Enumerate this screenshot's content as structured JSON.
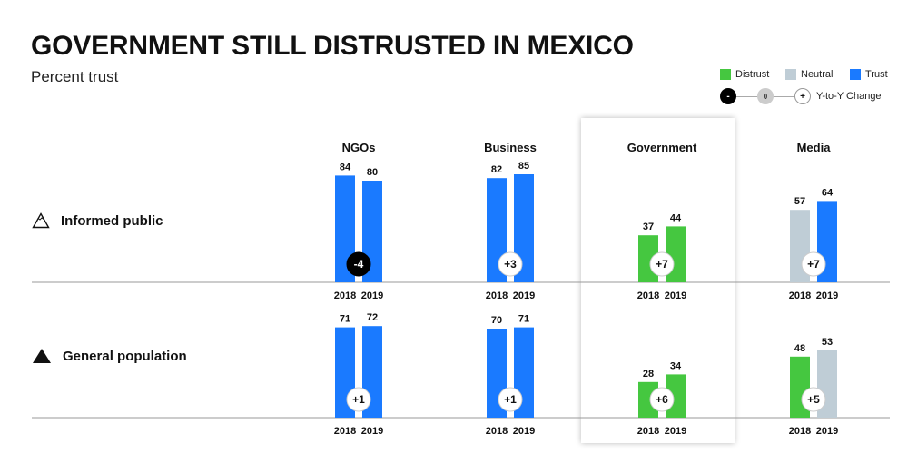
{
  "header": {
    "title": "GOVERNMENT STILL DISTRUSTED IN MEXICO",
    "subtitle": "Percent trust"
  },
  "legend": {
    "items": [
      {
        "label": "Distrust",
        "color": "#45c740"
      },
      {
        "label": "Neutral",
        "color": "#bfcdd6"
      },
      {
        "label": "Trust",
        "color": "#1a7aff"
      }
    ],
    "change": {
      "neg": "-",
      "zero": "0",
      "pos": "+",
      "label": "Y-to-Y Change"
    }
  },
  "rows": [
    {
      "label": "Informed public",
      "icon": "outline-triangle-icon"
    },
    {
      "label": "General population",
      "icon": "filled-triangle-icon"
    }
  ],
  "chart_data": {
    "type": "bar",
    "title": "GOVERNMENT STILL DISTRUSTED IN MEXICO",
    "subtitle": "Percent trust",
    "ylabel": "Percent trust",
    "ylim": [
      0,
      100
    ],
    "institutions": [
      "NGOs",
      "Business",
      "Government",
      "Media"
    ],
    "highlighted": "Government",
    "years": [
      "2018",
      "2019"
    ],
    "groups": [
      {
        "name": "Informed public",
        "data": [
          {
            "institution": "NGOs",
            "values": [
              84,
              80
            ],
            "colors": [
              "#1a7aff",
              "#1a7aff"
            ],
            "change": "-4"
          },
          {
            "institution": "Business",
            "values": [
              82,
              85
            ],
            "colors": [
              "#1a7aff",
              "#1a7aff"
            ],
            "change": "+3"
          },
          {
            "institution": "Government",
            "values": [
              37,
              44
            ],
            "colors": [
              "#45c740",
              "#45c740"
            ],
            "change": "+7"
          },
          {
            "institution": "Media",
            "values": [
              57,
              64
            ],
            "colors": [
              "#bfcdd6",
              "#1a7aff"
            ],
            "change": "+7"
          }
        ]
      },
      {
        "name": "General population",
        "data": [
          {
            "institution": "NGOs",
            "values": [
              71,
              72
            ],
            "colors": [
              "#1a7aff",
              "#1a7aff"
            ],
            "change": "+1"
          },
          {
            "institution": "Business",
            "values": [
              70,
              71
            ],
            "colors": [
              "#1a7aff",
              "#1a7aff"
            ],
            "change": "+1"
          },
          {
            "institution": "Government",
            "values": [
              28,
              34
            ],
            "colors": [
              "#45c740",
              "#45c740"
            ],
            "change": "+6"
          },
          {
            "institution": "Media",
            "values": [
              48,
              53
            ],
            "colors": [
              "#45c740",
              "#bfcdd6"
            ],
            "change": "+5"
          }
        ]
      }
    ]
  }
}
